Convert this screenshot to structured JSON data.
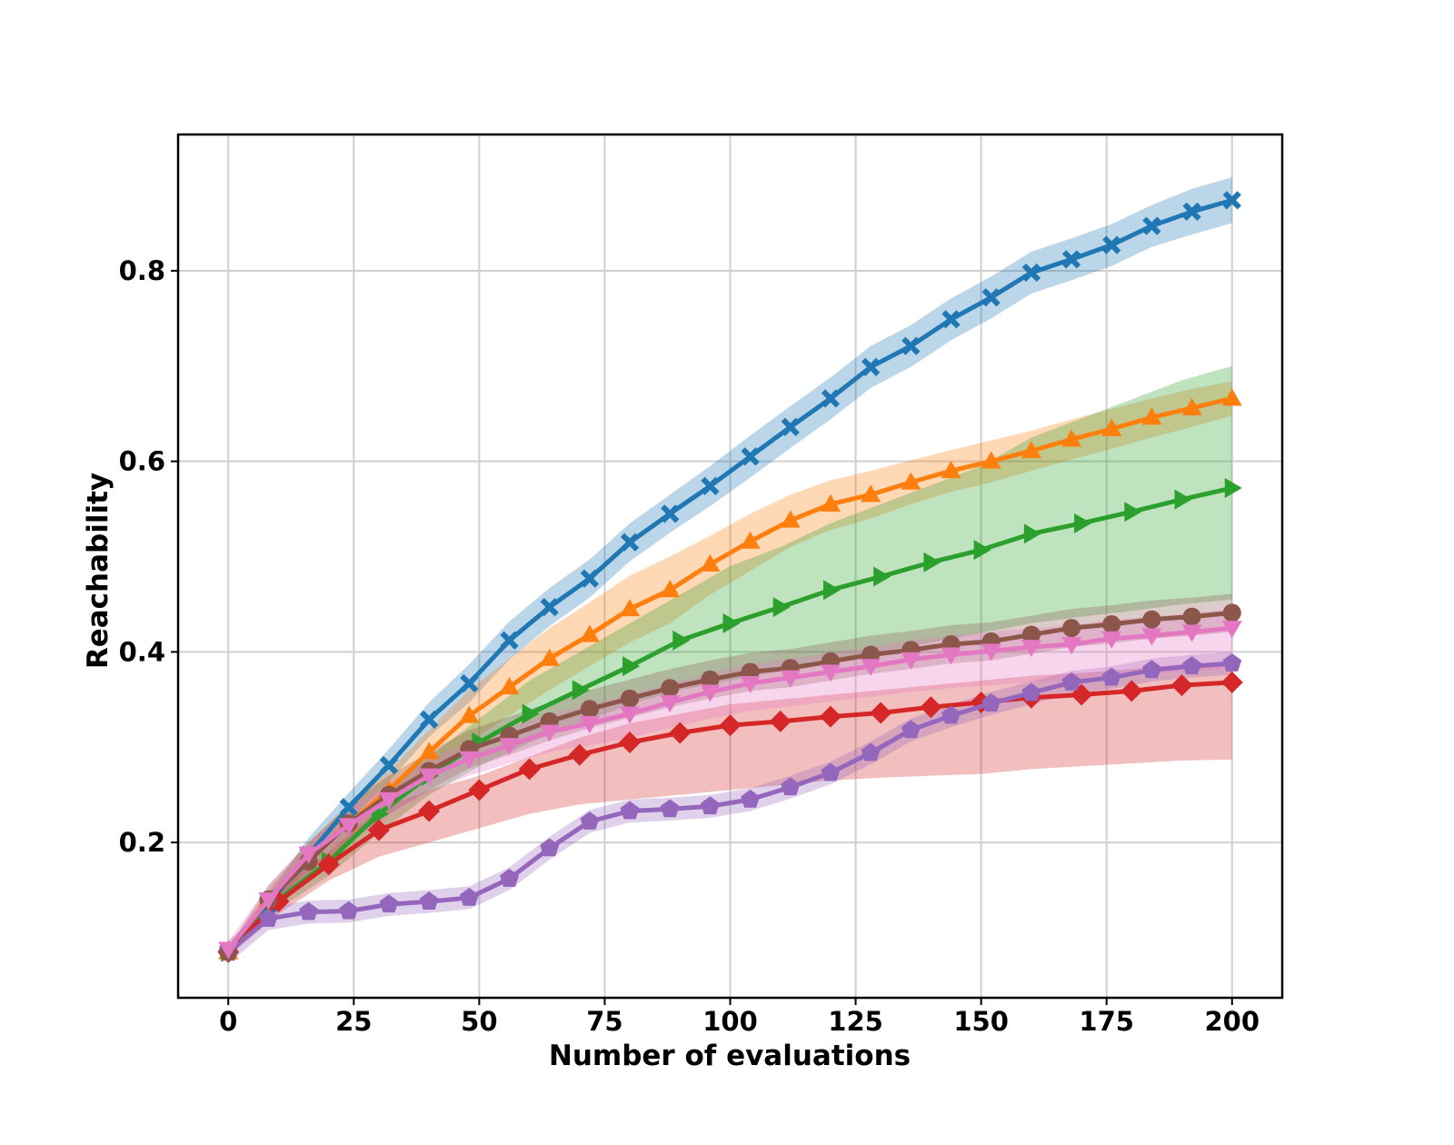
{
  "chart_data": {
    "type": "line",
    "xlabel": "Number of evaluations",
    "ylabel": "Reachability",
    "xlim": [
      -10,
      210
    ],
    "ylim": [
      0.037,
      0.943
    ],
    "xticks": [
      0,
      25,
      50,
      75,
      100,
      125,
      150,
      175,
      200
    ],
    "yticks": [
      0.2,
      0.4,
      0.6,
      0.8
    ],
    "grid": true,
    "series": [
      {
        "color": "#1f77b4",
        "marker": "x",
        "x": [
          0,
          8,
          16,
          24,
          32,
          40,
          48,
          56,
          64,
          72,
          80,
          88,
          96,
          104,
          112,
          120,
          128,
          136,
          144,
          152,
          160,
          168,
          176,
          184,
          192,
          200
        ],
        "values": [
          0.085,
          0.135,
          0.187,
          0.237,
          0.281,
          0.329,
          0.367,
          0.412,
          0.447,
          0.477,
          0.515,
          0.545,
          0.574,
          0.605,
          0.636,
          0.666,
          0.699,
          0.721,
          0.749,
          0.772,
          0.798,
          0.812,
          0.827,
          0.847,
          0.862,
          0.874
        ],
        "lower": [
          0.08,
          0.125,
          0.175,
          0.222,
          0.264,
          0.311,
          0.347,
          0.392,
          0.427,
          0.457,
          0.495,
          0.525,
          0.553,
          0.583,
          0.614,
          0.644,
          0.677,
          0.699,
          0.727,
          0.75,
          0.776,
          0.79,
          0.805,
          0.825,
          0.838,
          0.85
        ],
        "upper": [
          0.09,
          0.145,
          0.205,
          0.252,
          0.298,
          0.347,
          0.387,
          0.432,
          0.467,
          0.497,
          0.535,
          0.565,
          0.595,
          0.627,
          0.658,
          0.688,
          0.721,
          0.743,
          0.771,
          0.794,
          0.82,
          0.834,
          0.849,
          0.869,
          0.886,
          0.898
        ]
      },
      {
        "color": "#ff7f0e",
        "marker": "triangle-up",
        "x": [
          0,
          8,
          16,
          24,
          32,
          40,
          48,
          56,
          64,
          72,
          80,
          88,
          96,
          104,
          112,
          120,
          128,
          136,
          144,
          152,
          160,
          168,
          176,
          184,
          192,
          200
        ],
        "values": [
          0.085,
          0.14,
          0.185,
          0.22,
          0.255,
          0.295,
          0.333,
          0.363,
          0.393,
          0.418,
          0.445,
          0.465,
          0.492,
          0.516,
          0.538,
          0.555,
          0.565,
          0.578,
          0.59,
          0.6,
          0.611,
          0.623,
          0.634,
          0.646,
          0.656,
          0.666
        ],
        "lower": [
          0.08,
          0.13,
          0.17,
          0.2,
          0.235,
          0.272,
          0.305,
          0.333,
          0.36,
          0.385,
          0.41,
          0.43,
          0.46,
          0.485,
          0.51,
          0.528,
          0.54,
          0.555,
          0.568,
          0.578,
          0.59,
          0.602,
          0.613,
          0.625,
          0.636,
          0.648
        ],
        "upper": [
          0.09,
          0.15,
          0.2,
          0.24,
          0.275,
          0.318,
          0.36,
          0.393,
          0.425,
          0.452,
          0.48,
          0.5,
          0.522,
          0.545,
          0.565,
          0.58,
          0.59,
          0.601,
          0.612,
          0.622,
          0.632,
          0.644,
          0.655,
          0.666,
          0.676,
          0.684
        ]
      },
      {
        "color": "#2ca02c",
        "marker": "triangle-right",
        "x": [
          0,
          10,
          20,
          30,
          40,
          50,
          60,
          70,
          80,
          90,
          100,
          110,
          120,
          130,
          140,
          150,
          160,
          170,
          180,
          190,
          200
        ],
        "values": [
          0.085,
          0.14,
          0.18,
          0.23,
          0.27,
          0.305,
          0.335,
          0.36,
          0.385,
          0.412,
          0.43,
          0.447,
          0.465,
          0.479,
          0.494,
          0.507,
          0.524,
          0.535,
          0.547,
          0.56,
          0.572
        ],
        "lower": [
          0.08,
          0.13,
          0.165,
          0.21,
          0.25,
          0.28,
          0.305,
          0.325,
          0.345,
          0.36,
          0.37,
          0.38,
          0.39,
          0.4,
          0.41,
          0.42,
          0.43,
          0.437,
          0.443,
          0.45,
          0.455
        ],
        "upper": [
          0.09,
          0.15,
          0.195,
          0.25,
          0.29,
          0.33,
          0.37,
          0.4,
          0.43,
          0.46,
          0.49,
          0.51,
          0.535,
          0.555,
          0.575,
          0.595,
          0.625,
          0.645,
          0.665,
          0.685,
          0.7
        ]
      },
      {
        "color": "#d62728",
        "marker": "diamond",
        "x": [
          0,
          10,
          20,
          30,
          40,
          50,
          60,
          70,
          80,
          90,
          100,
          110,
          120,
          130,
          140,
          150,
          160,
          170,
          180,
          190,
          200
        ],
        "values": [
          0.085,
          0.138,
          0.177,
          0.213,
          0.233,
          0.255,
          0.277,
          0.292,
          0.305,
          0.315,
          0.323,
          0.327,
          0.332,
          0.336,
          0.342,
          0.347,
          0.352,
          0.355,
          0.359,
          0.365,
          0.368
        ],
        "lower": [
          0.08,
          0.125,
          0.16,
          0.185,
          0.2,
          0.215,
          0.23,
          0.24,
          0.245,
          0.25,
          0.255,
          0.26,
          0.265,
          0.268,
          0.27,
          0.272,
          0.277,
          0.28,
          0.283,
          0.286,
          0.287
        ],
        "upper": [
          0.09,
          0.15,
          0.19,
          0.235,
          0.255,
          0.27,
          0.29,
          0.31,
          0.325,
          0.335,
          0.345,
          0.35,
          0.355,
          0.36,
          0.365,
          0.37,
          0.375,
          0.378,
          0.382,
          0.387,
          0.39
        ]
      },
      {
        "color": "#9467bd",
        "marker": "pentagon",
        "x": [
          0,
          8,
          16,
          24,
          32,
          40,
          48,
          56,
          64,
          72,
          80,
          88,
          96,
          104,
          112,
          120,
          128,
          136,
          144,
          152,
          160,
          168,
          176,
          184,
          192,
          200
        ],
        "values": [
          0.085,
          0.12,
          0.127,
          0.128,
          0.135,
          0.138,
          0.142,
          0.162,
          0.194,
          0.222,
          0.233,
          0.235,
          0.238,
          0.245,
          0.258,
          0.273,
          0.294,
          0.318,
          0.333,
          0.346,
          0.357,
          0.368,
          0.373,
          0.381,
          0.385,
          0.388
        ],
        "lower": [
          0.073,
          0.108,
          0.115,
          0.116,
          0.123,
          0.126,
          0.13,
          0.15,
          0.182,
          0.21,
          0.221,
          0.223,
          0.226,
          0.233,
          0.246,
          0.261,
          0.282,
          0.306,
          0.321,
          0.334,
          0.345,
          0.356,
          0.361,
          0.369,
          0.373,
          0.376
        ],
        "upper": [
          0.097,
          0.132,
          0.139,
          0.14,
          0.147,
          0.15,
          0.154,
          0.174,
          0.206,
          0.234,
          0.245,
          0.247,
          0.25,
          0.257,
          0.27,
          0.285,
          0.306,
          0.33,
          0.345,
          0.358,
          0.369,
          0.38,
          0.385,
          0.393,
          0.397,
          0.4
        ]
      },
      {
        "color": "#8c564b",
        "marker": "circle",
        "x": [
          0,
          8,
          16,
          24,
          32,
          40,
          48,
          56,
          64,
          72,
          80,
          88,
          96,
          104,
          112,
          120,
          128,
          136,
          144,
          152,
          160,
          168,
          176,
          184,
          192,
          200
        ],
        "values": [
          0.085,
          0.14,
          0.18,
          0.22,
          0.25,
          0.275,
          0.298,
          0.312,
          0.327,
          0.34,
          0.351,
          0.362,
          0.371,
          0.379,
          0.383,
          0.39,
          0.397,
          0.402,
          0.408,
          0.411,
          0.418,
          0.425,
          0.429,
          0.434,
          0.437,
          0.441
        ],
        "lower": [
          0.08,
          0.125,
          0.16,
          0.2,
          0.23,
          0.255,
          0.278,
          0.292,
          0.307,
          0.32,
          0.331,
          0.342,
          0.351,
          0.359,
          0.363,
          0.37,
          0.377,
          0.382,
          0.388,
          0.391,
          0.398,
          0.405,
          0.409,
          0.414,
          0.417,
          0.421
        ],
        "upper": [
          0.09,
          0.155,
          0.2,
          0.24,
          0.27,
          0.295,
          0.318,
          0.332,
          0.347,
          0.36,
          0.371,
          0.382,
          0.391,
          0.399,
          0.403,
          0.41,
          0.417,
          0.422,
          0.428,
          0.431,
          0.438,
          0.445,
          0.449,
          0.454,
          0.457,
          0.461
        ]
      },
      {
        "color": "#e377c2",
        "marker": "triangle-down",
        "x": [
          0,
          8,
          16,
          24,
          32,
          40,
          48,
          56,
          64,
          72,
          80,
          88,
          96,
          104,
          112,
          120,
          128,
          136,
          144,
          152,
          160,
          168,
          176,
          184,
          192,
          200
        ],
        "values": [
          0.088,
          0.14,
          0.188,
          0.218,
          0.245,
          0.27,
          0.288,
          0.302,
          0.316,
          0.325,
          0.335,
          0.347,
          0.358,
          0.367,
          0.373,
          0.379,
          0.385,
          0.392,
          0.397,
          0.401,
          0.405,
          0.408,
          0.414,
          0.417,
          0.421,
          0.425
        ],
        "lower": [
          0.08,
          0.125,
          0.17,
          0.2,
          0.228,
          0.253,
          0.27,
          0.283,
          0.295,
          0.302,
          0.31,
          0.32,
          0.33,
          0.338,
          0.343,
          0.348,
          0.353,
          0.358,
          0.362,
          0.365,
          0.368,
          0.37,
          0.374,
          0.377,
          0.38,
          0.383
        ],
        "upper": [
          0.096,
          0.155,
          0.2,
          0.235,
          0.262,
          0.287,
          0.305,
          0.32,
          0.335,
          0.345,
          0.355,
          0.367,
          0.378,
          0.387,
          0.393,
          0.399,
          0.405,
          0.412,
          0.417,
          0.421,
          0.425,
          0.428,
          0.434,
          0.437,
          0.441,
          0.445
        ]
      }
    ]
  }
}
